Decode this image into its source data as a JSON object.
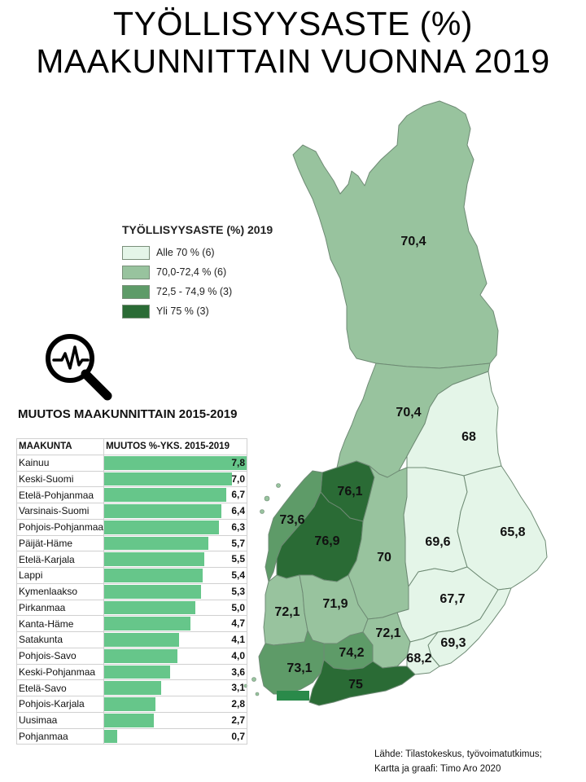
{
  "title": {
    "line1": "TYÖLLISYYSASTE (%)",
    "line2": "MAAKUNNITTAIN VUONNA 2019"
  },
  "colors": {
    "class1": "#e4f5e8",
    "class2": "#98c39e",
    "class3": "#5e9b68",
    "class4": "#2a6b35",
    "border": "#6e8a74",
    "bar": "#66c68a"
  },
  "legend": {
    "title": "TYÖLLISYYSASTE (%) 2019",
    "items": [
      {
        "label": "Alle 70 % (6)",
        "color": "#e4f5e8"
      },
      {
        "label": "70,0-72,4 % (6)",
        "color": "#98c39e"
      },
      {
        "label": "72,5 - 74,9 % (3)",
        "color": "#5e9b68"
      },
      {
        "label": "Yli 75 % (3)",
        "color": "#2a6b35"
      }
    ]
  },
  "map": {
    "regions": [
      {
        "name": "Lappi",
        "value": "70,4",
        "class": 2
      },
      {
        "name": "Pohjois-Pohjanmaa",
        "value": "70,4",
        "class": 2
      },
      {
        "name": "Kainuu",
        "value": "68",
        "class": 1
      },
      {
        "name": "Keski-Pohjanmaa",
        "value": "76,1",
        "class": 4
      },
      {
        "name": "Pohjanmaa",
        "value": "73,6",
        "class": 3
      },
      {
        "name": "Etelä-Pohjanmaa",
        "value": "76,9",
        "class": 4
      },
      {
        "name": "Keski-Suomi",
        "value": "70",
        "class": 2
      },
      {
        "name": "Pohjois-Savo",
        "value": "69,6",
        "class": 1
      },
      {
        "name": "Pohjois-Karjala",
        "value": "65,8",
        "class": 1
      },
      {
        "name": "Satakunta",
        "value": "72,1",
        "class": 2
      },
      {
        "name": "Pirkanmaa",
        "value": "71,9",
        "class": 2
      },
      {
        "name": "Etelä-Savo",
        "value": "67,7",
        "class": 1
      },
      {
        "name": "Päijät-Häme",
        "value": "72,1",
        "class": 2
      },
      {
        "name": "Kanta-Häme",
        "value": "74,2",
        "class": 3
      },
      {
        "name": "Etelä-Karjala",
        "value": "69,3",
        "class": 1
      },
      {
        "name": "Kymenlaakso",
        "value": "68,2",
        "class": 1
      },
      {
        "name": "Varsinais-Suomi",
        "value": "73,1",
        "class": 3
      },
      {
        "name": "Uusimaa",
        "value": "75",
        "class": 4
      }
    ]
  },
  "change": {
    "title": "MUUTOS MAAKUNNITTAIN 2015-2019",
    "header_region": "MAAKUNTA",
    "header_change": "MUUTOS %-YKS. 2015-2019",
    "max": 7.8,
    "rows": [
      {
        "name": "Kainuu",
        "value": 7.8,
        "label": "7,8"
      },
      {
        "name": "Keski-Suomi",
        "value": 7.0,
        "label": "7,0"
      },
      {
        "name": "Etelä-Pohjanmaa",
        "value": 6.7,
        "label": "6,7"
      },
      {
        "name": "Varsinais-Suomi",
        "value": 6.4,
        "label": "6,4"
      },
      {
        "name": "Pohjois-Pohjanmaa",
        "value": 6.3,
        "label": "6,3"
      },
      {
        "name": "Päijät-Häme",
        "value": 5.7,
        "label": "5,7"
      },
      {
        "name": "Etelä-Karjala",
        "value": 5.5,
        "label": "5,5"
      },
      {
        "name": "Lappi",
        "value": 5.4,
        "label": "5,4"
      },
      {
        "name": "Kymenlaakso",
        "value": 5.3,
        "label": "5,3"
      },
      {
        "name": "Pirkanmaa",
        "value": 5.0,
        "label": "5,0"
      },
      {
        "name": "Kanta-Häme",
        "value": 4.7,
        "label": "4,7"
      },
      {
        "name": "Satakunta",
        "value": 4.1,
        "label": "4,1"
      },
      {
        "name": "Pohjois-Savo",
        "value": 4.0,
        "label": "4,0"
      },
      {
        "name": "Keski-Pohjanmaa",
        "value": 3.6,
        "label": "3,6"
      },
      {
        "name": "Etelä-Savo",
        "value": 3.1,
        "label": "3,1"
      },
      {
        "name": "Pohjois-Karjala",
        "value": 2.8,
        "label": "2,8"
      },
      {
        "name": "Uusimaa",
        "value": 2.7,
        "label": "2,7"
      },
      {
        "name": "Pohjanmaa",
        "value": 0.7,
        "label": "0,7"
      }
    ]
  },
  "source": {
    "line1": "Lähde: Tilastokeskus, työvoimatutkimus;",
    "line2": "Kartta ja graafi: Timo Aro 2020"
  }
}
